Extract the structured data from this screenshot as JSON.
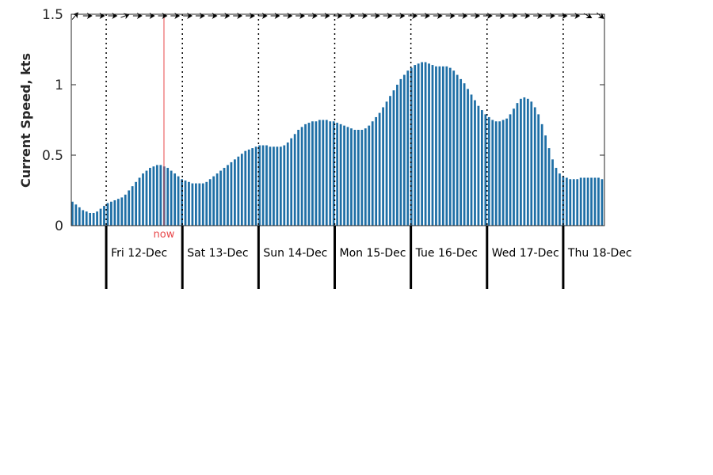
{
  "chart_data": {
    "type": "bar",
    "ylabel": "Current Speed, kts",
    "ylim": [
      0,
      1.5
    ],
    "yticks": [
      {
        "value": 0,
        "label": "0"
      },
      {
        "value": 0.5,
        "label": "0.5"
      },
      {
        "value": 1,
        "label": "1"
      },
      {
        "value": 1.5,
        "label": "1.5"
      }
    ],
    "x_range_hours": [
      -11,
      157
    ],
    "day_markers": [
      {
        "hour": 0,
        "label": "Fri 12-Dec"
      },
      {
        "hour": 24,
        "label": "Sat 13-Dec"
      },
      {
        "hour": 48,
        "label": "Sun 14-Dec"
      },
      {
        "hour": 72,
        "label": "Mon 15-Dec"
      },
      {
        "hour": 96,
        "label": "Tue 16-Dec"
      },
      {
        "hour": 120,
        "label": "Wed 17-Dec"
      },
      {
        "hour": 144,
        "label": "Thu 18-Dec"
      }
    ],
    "now": {
      "hour": 18.2,
      "label": "now"
    },
    "bar_color": "#1f6fa6",
    "now_color": "#e8474a",
    "grid": false,
    "values": [
      0.17,
      0.15,
      0.13,
      0.11,
      0.1,
      0.09,
      0.09,
      0.1,
      0.12,
      0.14,
      0.16,
      0.17,
      0.18,
      0.19,
      0.2,
      0.22,
      0.25,
      0.28,
      0.31,
      0.34,
      0.37,
      0.39,
      0.41,
      0.42,
      0.43,
      0.43,
      0.42,
      0.41,
      0.39,
      0.37,
      0.35,
      0.33,
      0.32,
      0.31,
      0.3,
      0.3,
      0.3,
      0.3,
      0.31,
      0.33,
      0.35,
      0.37,
      0.39,
      0.41,
      0.43,
      0.45,
      0.47,
      0.49,
      0.51,
      0.53,
      0.54,
      0.55,
      0.56,
      0.57,
      0.57,
      0.57,
      0.56,
      0.56,
      0.56,
      0.56,
      0.57,
      0.59,
      0.62,
      0.65,
      0.68,
      0.7,
      0.72,
      0.73,
      0.74,
      0.74,
      0.75,
      0.75,
      0.75,
      0.74,
      0.74,
      0.73,
      0.72,
      0.71,
      0.7,
      0.69,
      0.68,
      0.68,
      0.68,
      0.69,
      0.71,
      0.74,
      0.77,
      0.8,
      0.84,
      0.88,
      0.92,
      0.96,
      1.0,
      1.04,
      1.07,
      1.1,
      1.12,
      1.14,
      1.15,
      1.16,
      1.16,
      1.15,
      1.14,
      1.13,
      1.13,
      1.13,
      1.13,
      1.12,
      1.1,
      1.07,
      1.04,
      1.01,
      0.97,
      0.93,
      0.89,
      0.85,
      0.82,
      0.79,
      0.77,
      0.75,
      0.74,
      0.74,
      0.75,
      0.76,
      0.79,
      0.83,
      0.87,
      0.9,
      0.91,
      0.9,
      0.88,
      0.84,
      0.79,
      0.72,
      0.64,
      0.55,
      0.47,
      0.41,
      0.37,
      0.35,
      0.34,
      0.33,
      0.33,
      0.33,
      0.34,
      0.34,
      0.34,
      0.34,
      0.34,
      0.34,
      0.33
    ]
  }
}
